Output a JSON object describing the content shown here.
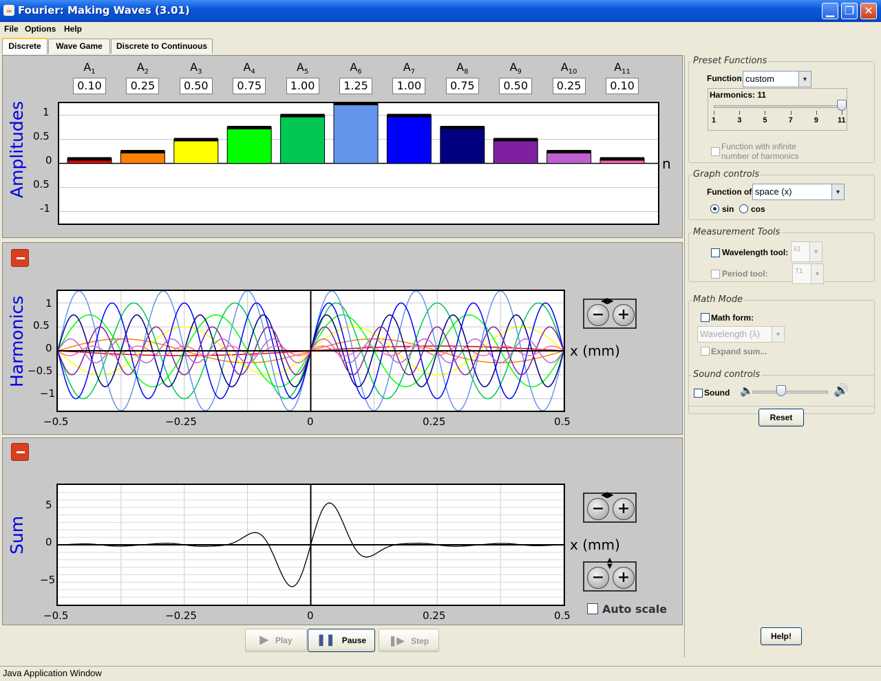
{
  "window": {
    "title": "Fourier: Making Waves (3.01)",
    "min": "▁",
    "max": "❐",
    "close": "✕"
  },
  "menu": [
    "File",
    "Options",
    "Help"
  ],
  "tabs": [
    "Discrete",
    "Wave Game",
    "Discrete to Continuous"
  ],
  "amplitudes": {
    "ylabel": "Amplitudes",
    "n_label": "n",
    "yticks": [
      "1",
      "0.5",
      "0",
      "0.5",
      "-1"
    ],
    "labels": [
      "A1",
      "A2",
      "A3",
      "A4",
      "A5",
      "A6",
      "A7",
      "A8",
      "A9",
      "A10",
      "A11"
    ],
    "label_main": "A",
    "label_subs": [
      "1",
      "2",
      "3",
      "4",
      "5",
      "6",
      "7",
      "8",
      "9",
      "10",
      "11"
    ],
    "fields": [
      "0.10",
      "0.25",
      "0.50",
      "0.75",
      "1.00",
      "1.25",
      "1.00",
      "0.75",
      "0.50",
      "0.25",
      "0.10"
    ],
    "colors": [
      "#e00000",
      "#ff8000",
      "#ffff00",
      "#00ff00",
      "#00c850",
      "#6495ed",
      "#0000ff",
      "#000080",
      "#8020a0",
      "#c060d0",
      "#ff60b0"
    ]
  },
  "chart_data": [
    {
      "type": "bar",
      "categories": [
        "A1",
        "A2",
        "A3",
        "A4",
        "A5",
        "A6",
        "A7",
        "A8",
        "A9",
        "A10",
        "A11"
      ],
      "values": [
        0.1,
        0.25,
        0.5,
        0.75,
        1.0,
        1.25,
        1.0,
        0.75,
        0.5,
        0.25,
        0.1
      ],
      "ylabel": "Amplitudes",
      "xlabel": "n",
      "ylim": [
        -1.25,
        1.25
      ]
    },
    {
      "type": "line",
      "ylabel": "Harmonics",
      "xlabel": "x (mm)",
      "xlim": [
        -0.5,
        0.5
      ],
      "ylim": [
        -1.25,
        1.25
      ],
      "xticks": [
        "−0.5",
        "−0.25",
        "0",
        "0.25",
        "0.5"
      ],
      "yticks": [
        "1",
        "0.5",
        "0",
        "−0.5",
        "−1"
      ],
      "series": [
        {
          "harmonic": 1,
          "amplitude": 0.1
        },
        {
          "harmonic": 2,
          "amplitude": 0.25
        },
        {
          "harmonic": 3,
          "amplitude": 0.5
        },
        {
          "harmonic": 4,
          "amplitude": 0.75
        },
        {
          "harmonic": 5,
          "amplitude": 1.0
        },
        {
          "harmonic": 6,
          "amplitude": 1.25
        },
        {
          "harmonic": 7,
          "amplitude": 1.0
        },
        {
          "harmonic": 8,
          "amplitude": 0.75
        },
        {
          "harmonic": 9,
          "amplitude": 0.5
        },
        {
          "harmonic": 10,
          "amplitude": 0.25
        },
        {
          "harmonic": 11,
          "amplitude": 0.1
        }
      ]
    },
    {
      "type": "line",
      "ylabel": "Sum",
      "xlabel": "x (mm)",
      "xlim": [
        -0.5,
        0.5
      ],
      "ylim": [
        -8,
        8
      ],
      "xticks": [
        "−0.5",
        "−0.25",
        "0",
        "0.25",
        "0.5"
      ],
      "yticks": [
        "5",
        "0",
        "−5"
      ]
    }
  ],
  "harmonics": {
    "ylabel": "Harmonics",
    "unit": "x (mm)"
  },
  "sum": {
    "ylabel": "Sum",
    "unit": "x (mm)",
    "autoscale": "Auto scale"
  },
  "zoom": {
    "minus": "−",
    "plus": "+"
  },
  "playback": {
    "play": "Play",
    "pause": "Pause",
    "step": "Step"
  },
  "controls": {
    "preset": {
      "title": "Preset Functions",
      "function_label": "Function:",
      "function_value": "custom",
      "harmonics_label": "Harmonics: 11",
      "harmonics_value": 11,
      "slider_ticks": [
        "1",
        "3",
        "5",
        "7",
        "9",
        "11"
      ],
      "infinite_line1": "Function with infinite",
      "infinite_line2": "number of harmonics"
    },
    "graph": {
      "title": "Graph controls",
      "function_of_label": "Function of:",
      "function_of_value": "space (x)",
      "sin": "sin",
      "cos": "cos"
    },
    "measure": {
      "title": "Measurement Tools",
      "wavelength_label": "Wavelength tool:",
      "wavelength_value": "λ1",
      "period_label": "Period tool:",
      "period_value": "T1"
    },
    "math": {
      "title": "Math Mode",
      "form_label": "Math form:",
      "form_value": "Wavelength (λ)",
      "expand_label": "Expand sum..."
    },
    "sound": {
      "title": "Sound controls",
      "sound_label": "Sound",
      "volume": 0.38
    },
    "reset": "Reset",
    "help": "Help!"
  },
  "status": "Java Application Window"
}
